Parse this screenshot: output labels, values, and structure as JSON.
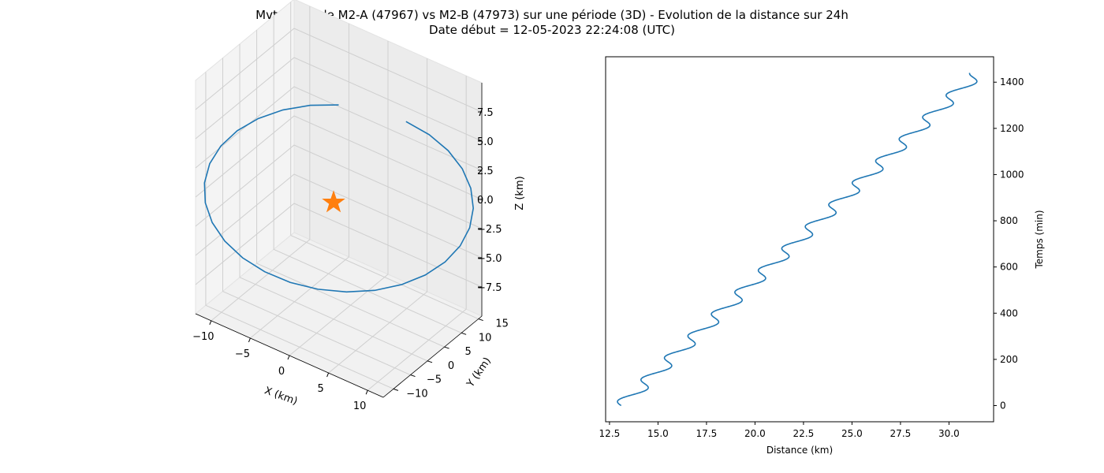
{
  "figure": {
    "title_line1": "Mvt relatif de M2-A (47967) vs M2-B (47973) sur une période (3D) - Evolution de la distance sur 24h",
    "title_line2": "Date début = 12-05-2023 22:24:08 (UTC)"
  },
  "chart_data": [
    {
      "type": "line3d",
      "xlabel": "X (km)",
      "ylabel": "Y (km)",
      "zlabel": "Z (km)",
      "xlim": [
        -12,
        12
      ],
      "ylim": [
        -13,
        16
      ],
      "zlim": [
        -10,
        10
      ],
      "x_ticks": [
        -10,
        -5,
        0,
        5,
        10
      ],
      "y_ticks": [
        -10,
        -5,
        0,
        5,
        10,
        15
      ],
      "z_ticks": [
        -7.5,
        -5.0,
        -2.5,
        0.0,
        2.5,
        5.0,
        7.5
      ],
      "x_tick_labels": [
        "−10",
        "−5",
        "0",
        "5",
        "10"
      ],
      "y_tick_labels": [
        "−10",
        "−5",
        "0",
        "5",
        "10",
        "15"
      ],
      "z_tick_labels": [
        "−7.5",
        "−5.0",
        "−2.5",
        "0.0",
        "2.5",
        "5.0",
        "7.5"
      ],
      "grid": true,
      "series": [
        {
          "color": "#1f77b4",
          "kind": "line",
          "parametric": {
            "x_amplitude": 12,
            "y_center": 1.5,
            "y_amplitude": 12,
            "z_amplitude": 8,
            "points": 28,
            "t_start_deg": 90,
            "t_end_deg": 420
          }
        },
        {
          "color": "#ff7f0e",
          "kind": "star_marker",
          "points": [
            [
              0,
              0,
              0
            ]
          ]
        }
      ]
    },
    {
      "type": "line",
      "xlabel": "Distance (km)",
      "ylabel": "Temps (min)",
      "xlim": [
        12.3,
        32.3
      ],
      "ylim": [
        -70,
        1510
      ],
      "x_ticks": [
        12.5,
        15.0,
        17.5,
        20.0,
        22.5,
        25.0,
        27.5,
        30.0
      ],
      "x_tick_labels": [
        "12.5",
        "15.0",
        "17.5",
        "20.0",
        "22.5",
        "25.0",
        "27.5",
        "30.0"
      ],
      "y_ticks": [
        0,
        200,
        400,
        600,
        800,
        1000,
        1200,
        1400
      ],
      "y_tick_labels": [
        "0",
        "200",
        "400",
        "600",
        "800",
        "1000",
        "1200",
        "1400"
      ],
      "y_axis_side": "right",
      "grid": false,
      "series": [
        {
          "color": "#1f77b4",
          "curve": {
            "t_min": 0,
            "t_max": 1440,
            "d_start": 13.1,
            "d_end": 31.5,
            "wiggle_amplitude": 0.45,
            "period_min": 94.7
          }
        }
      ]
    }
  ]
}
